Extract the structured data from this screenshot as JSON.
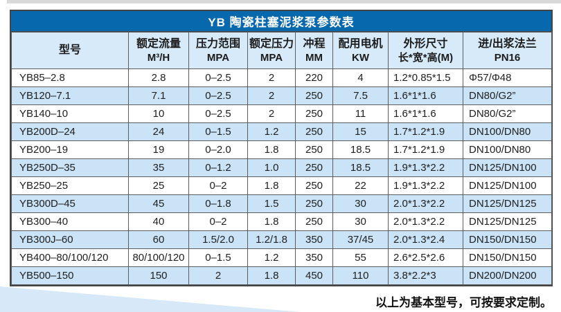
{
  "title_bar": {
    "text": "YB 陶瓷柱塞泥浆泵参数表"
  },
  "table": {
    "columns": [
      {
        "line1": "型号",
        "line2": ""
      },
      {
        "line1": "额定流量",
        "line2": "M³/H"
      },
      {
        "line1": "压力范围",
        "line2": "MPA"
      },
      {
        "line1": "额定压力",
        "line2": "MPA"
      },
      {
        "line1": "冲程",
        "line2": "MM"
      },
      {
        "line1": "配用电机",
        "line2": "KW"
      },
      {
        "line1": "外形尺寸",
        "line2": "长*宽*高(M)"
      },
      {
        "line1": "进/出浆法兰",
        "line2": "PN16"
      }
    ],
    "rows": [
      [
        "YB85–2.8",
        "2.8",
        "0–2.5",
        "2",
        "220",
        "4",
        "1.2*0.85*1.5",
        "Φ57/Φ48"
      ],
      [
        "YB120–7.1",
        "7.1",
        "0–2.5",
        "2",
        "250",
        "7.5",
        "1.6*1*1.6",
        "DN80/G2”"
      ],
      [
        "YB140–10",
        "10",
        "0–2.5",
        "2",
        "250",
        "11",
        "1.6*1*1.6",
        "DN80/G2”"
      ],
      [
        "YB200D–24",
        "24",
        "0–1.5",
        "1.2",
        "250",
        "15",
        "1.7*1.2*1.9",
        "DN100/DN80"
      ],
      [
        "YB200–19",
        "19",
        "0–2.0",
        "1.8",
        "250",
        "18.5",
        "1.7*1.2*1.9",
        "DN100/DN80"
      ],
      [
        "YB250D–35",
        "35",
        "0–1.2",
        "1.0",
        "250",
        "18.5",
        "1.9*1.3*2.2",
        "DN125/DN100"
      ],
      [
        "YB250–25",
        "25",
        "0–2",
        "1.8",
        "250",
        "22",
        "1.9*1.3*2.2",
        "DN125/DN100"
      ],
      [
        "YB300D–45",
        "45",
        "0–1.8",
        "1.5",
        "250",
        "30",
        "2.0*1.3*2.2",
        "DN125/DN125"
      ],
      [
        "YB300–40",
        "40",
        "0–2",
        "1.8",
        "250",
        "30",
        "2.0*1.3*2.2",
        "DN125/DN125"
      ],
      [
        "YB300J–60",
        "60",
        "1.5/2.0",
        "1.2/1.8",
        "350",
        "37/45",
        "2.0*1.3*2.4",
        "DN150/DN150"
      ],
      [
        "YB400–80/100/120",
        "80/100/120",
        "0–1.5",
        "1.2",
        "350",
        "55",
        "2.6*2.5*2.6",
        "DN150/DN150"
      ],
      [
        "YB500–150",
        "150",
        "2",
        "1.8",
        "450",
        "110",
        "3.8*2.2*3",
        "DN200/DN200"
      ]
    ]
  },
  "footer": {
    "note": "以上为基本型号，可按要求定制。"
  },
  "colors": {
    "title_bar_bg": "#0768ad",
    "title_text": "#ffffff",
    "header_bg": "#d7eaf9",
    "row_bg": "#ffffff",
    "alt_row_bg": "#cbe3f6",
    "border": "#5c5c5c",
    "border_outer": "#454545",
    "wedge_bg": "#d7e9f8",
    "top_strip_bg": "#d9d9d9",
    "text": "#202020"
  }
}
